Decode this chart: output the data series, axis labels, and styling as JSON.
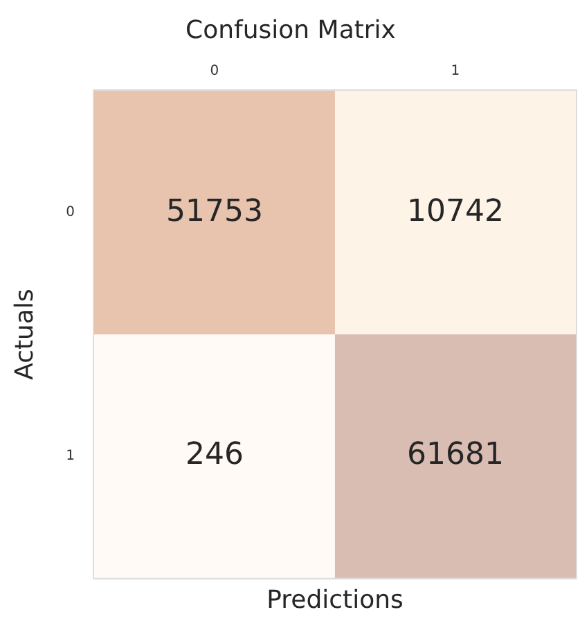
{
  "chart_data": {
    "type": "heatmap",
    "title": "Confusion Matrix",
    "xlabel": "Predictions",
    "ylabel": "Actuals",
    "data_labels": true,
    "categories": [
      "0",
      "1"
    ],
    "y_categories": [
      "0",
      "1"
    ],
    "cells": [
      [
        51753,
        10742
      ],
      [
        246,
        61681
      ]
    ],
    "colors": [
      [
        "#e8c3ae",
        "#fdf3e7"
      ],
      [
        "#fffaf6",
        "#d9bcb2"
      ]
    ]
  }
}
